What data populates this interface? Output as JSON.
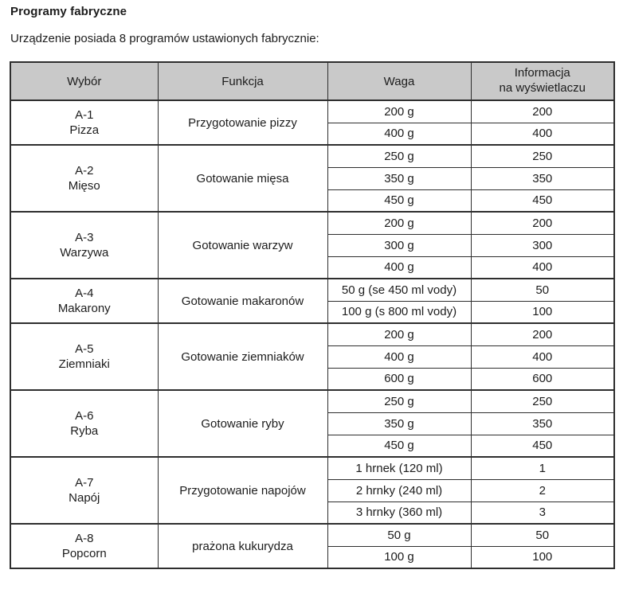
{
  "page": {
    "title": "Programy fabryczne",
    "subtitle": "Urządzenie posiada 8 programów ustawionych fabrycznie:"
  },
  "colors": {
    "header_background": "#c9c9c9",
    "border": "#2e2e2e",
    "text": "#1c1c1c"
  },
  "table": {
    "headers": [
      "Wybór",
      "Funkcja",
      "Waga",
      "Informacja\nna wyświetlaczu"
    ],
    "programs": [
      {
        "code": "A-1",
        "name": "Pizza",
        "function": "Przygotowanie pizzy",
        "rows": [
          {
            "weight": "200 g",
            "display": "200"
          },
          {
            "weight": "400 g",
            "display": "400"
          }
        ]
      },
      {
        "code": "A-2",
        "name": "Mięso",
        "function": "Gotowanie mięsa",
        "rows": [
          {
            "weight": "250 g",
            "display": "250"
          },
          {
            "weight": "350 g",
            "display": "350"
          },
          {
            "weight": "450 g",
            "display": "450"
          }
        ]
      },
      {
        "code": "A-3",
        "name": "Warzywa",
        "function": "Gotowanie warzyw",
        "rows": [
          {
            "weight": "200 g",
            "display": "200"
          },
          {
            "weight": "300 g",
            "display": "300"
          },
          {
            "weight": "400 g",
            "display": "400"
          }
        ]
      },
      {
        "code": "A-4",
        "name": "Makarony",
        "function": "Gotowanie makaronów",
        "rows": [
          {
            "weight": "50 g (se 450 ml vody)",
            "display": "50"
          },
          {
            "weight": "100 g (s 800 ml vody)",
            "display": "100"
          }
        ]
      },
      {
        "code": "A-5",
        "name": "Ziemniaki",
        "function": "Gotowanie ziemniaków",
        "rows": [
          {
            "weight": "200 g",
            "display": "200"
          },
          {
            "weight": "400 g",
            "display": "400"
          },
          {
            "weight": "600 g",
            "display": "600"
          }
        ]
      },
      {
        "code": "A-6",
        "name": "Ryba",
        "function": "Gotowanie ryby",
        "rows": [
          {
            "weight": "250 g",
            "display": "250"
          },
          {
            "weight": "350 g",
            "display": "350"
          },
          {
            "weight": "450 g",
            "display": "450"
          }
        ]
      },
      {
        "code": "A-7",
        "name": "Napój",
        "function": "Przygotowanie napojów",
        "rows": [
          {
            "weight": "1 hrnek (120 ml)",
            "display": "1"
          },
          {
            "weight": "2 hrnky (240 ml)",
            "display": "2"
          },
          {
            "weight": "3 hrnky (360 ml)",
            "display": "3"
          }
        ]
      },
      {
        "code": "A-8",
        "name": "Popcorn",
        "function": "prażona kukurydza",
        "rows": [
          {
            "weight": "50 g",
            "display": "50"
          },
          {
            "weight": "100 g",
            "display": "100"
          }
        ]
      }
    ]
  }
}
